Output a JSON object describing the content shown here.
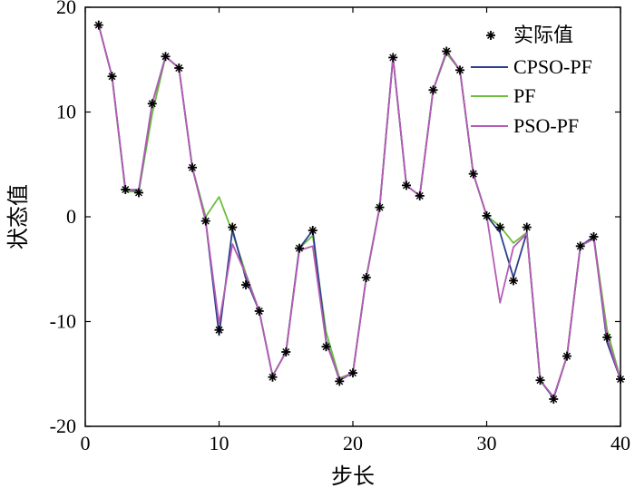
{
  "chart_data": {
    "type": "line",
    "xlabel": "步长",
    "ylabel": "状态值",
    "xlim": [
      0,
      40
    ],
    "ylim": [
      -20,
      20
    ],
    "xticks": [
      0,
      10,
      20,
      30,
      40
    ],
    "yticks": [
      -20,
      -10,
      0,
      10,
      20
    ],
    "grid": false,
    "legend_position": "top-right",
    "x": [
      1,
      2,
      3,
      4,
      5,
      6,
      7,
      8,
      9,
      10,
      11,
      12,
      13,
      14,
      15,
      16,
      17,
      18,
      19,
      20,
      21,
      22,
      23,
      24,
      25,
      26,
      27,
      28,
      29,
      30,
      31,
      32,
      33,
      34,
      35,
      36,
      37,
      38,
      39,
      40
    ],
    "series": [
      {
        "name": "实际值",
        "style": "marker",
        "color": "#000000",
        "values": [
          18.3,
          13.4,
          2.6,
          2.3,
          10.8,
          15.3,
          14.2,
          4.7,
          -0.4,
          -10.8,
          -1.0,
          -6.5,
          -9.0,
          -15.3,
          -12.9,
          -3.0,
          -1.3,
          -12.4,
          -15.7,
          -14.9,
          -5.8,
          0.9,
          15.2,
          3.0,
          2.0,
          12.1,
          15.8,
          14.0,
          4.1,
          0.1,
          -1.0,
          -6.1,
          -1.0,
          -15.6,
          -17.4,
          -13.3,
          -2.8,
          -1.9,
          -11.5,
          -15.5
        ]
      },
      {
        "name": "CPSO-PF",
        "style": "line",
        "color": "#2b3f8c",
        "values": [
          18.3,
          13.4,
          2.6,
          2.5,
          10.8,
          15.3,
          14.2,
          4.7,
          -0.4,
          -11.3,
          -1.2,
          -5.9,
          -9.0,
          -15.2,
          -12.9,
          -3.0,
          -1.3,
          -11.8,
          -15.6,
          -14.9,
          -5.8,
          0.9,
          15.2,
          3.0,
          2.0,
          12.1,
          15.8,
          14.0,
          4.1,
          0.1,
          -1.5,
          -5.8,
          -1.5,
          -15.6,
          -17.3,
          -13.3,
          -2.8,
          -1.9,
          -12.0,
          -15.5
        ]
      },
      {
        "name": "PF",
        "style": "line",
        "color": "#6cbf3c",
        "values": [
          18.3,
          13.4,
          2.4,
          2.4,
          9.8,
          15.3,
          14.2,
          4.7,
          0.0,
          1.9,
          -1.5,
          -5.4,
          -9.0,
          -15.2,
          -12.9,
          -3.0,
          -1.8,
          -11.0,
          -15.4,
          -14.9,
          -5.8,
          0.9,
          15.2,
          3.0,
          2.0,
          12.1,
          15.6,
          14.0,
          4.1,
          0.1,
          -0.9,
          -2.5,
          -1.5,
          -15.6,
          -17.3,
          -13.3,
          -2.8,
          -1.9,
          -10.8,
          -15.5
        ]
      },
      {
        "name": "PSO-PF",
        "style": "line",
        "color": "#b45cb4",
        "values": [
          18.3,
          13.4,
          2.6,
          2.6,
          10.8,
          15.3,
          14.2,
          4.7,
          -0.4,
          -10.2,
          -2.6,
          -5.5,
          -9.0,
          -15.2,
          -12.9,
          -3.2,
          -2.8,
          -12.0,
          -15.5,
          -14.9,
          -5.8,
          0.9,
          15.2,
          3.0,
          2.0,
          12.1,
          15.8,
          14.0,
          4.1,
          0.1,
          -8.2,
          -2.9,
          -1.6,
          -15.6,
          -17.2,
          -13.3,
          -2.8,
          -2.1,
          -11.5,
          -15.5
        ]
      }
    ]
  }
}
